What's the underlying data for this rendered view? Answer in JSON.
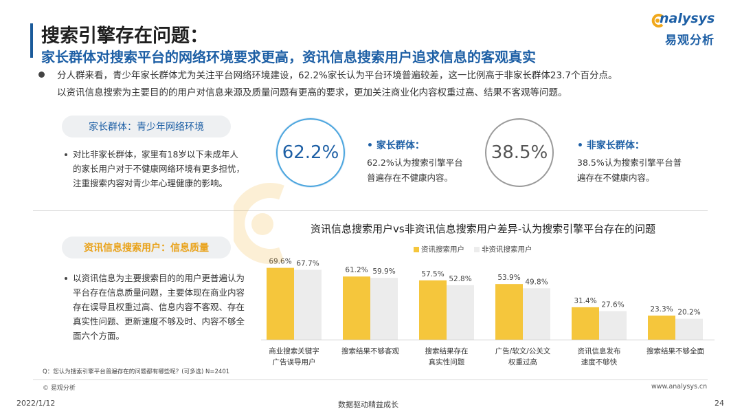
{
  "header": {
    "title": "搜索引擎存在问题：",
    "subtitle": "家长群体对搜索平台的网络环境要求更高，资讯信息搜索用户追求信息的客观真实"
  },
  "logo": {
    "en": "nalysys",
    "cn": "易观分析"
  },
  "summary": {
    "line1": "分人群来看，青少年家长群体尤为关注平台网络环境建设，62.2%家长认为平台环境普遍较差，这一比例高于非家长群体23.7个百分点。",
    "line2": "以资讯信息搜索为主要目的的用户对信息来源及质量问题有更高的要求，更加关注商业化内容权重过高、结果不客观等问题。"
  },
  "section_parents": {
    "pill": "家长群体：青少年网络环境",
    "text": "对比非家长群体，家里有18岁以下未成年人的家长用户对于不健康网络环境有更多担忧，注重搜索内容对青少年心理健康的影响。"
  },
  "section_info": {
    "pill": "资讯信息搜索用户：信息质量",
    "text": "以资讯信息为主要搜索目的的用户更普遍认为平台存在信息质量问题，主要体现在商业内容存在误导且权重过高、信息内容不客观、存在真实性问题、更新速度不够及时、内容不够全面六个方面。"
  },
  "stats": {
    "parents": {
      "value": "62.2%",
      "head": "• 家长群体：",
      "body": "62.2%认为搜索引擎平台普遍存在不健康内容。"
    },
    "non_parents": {
      "value": "38.5%",
      "head": "• 非家长群体：",
      "body": "38.5%认为搜索引擎平台普遍存在不健康内容。"
    }
  },
  "chart_title": "资讯信息搜索用户vs非资讯信息搜索用户差异-认为搜索引擎平台存在的问题",
  "chart_data": {
    "type": "bar",
    "categories": [
      [
        "商业搜索关键字",
        "广告误导用户"
      ],
      [
        "搜索结果不够客观"
      ],
      [
        "搜索结果存在",
        "真实性问题"
      ],
      [
        "广告/软文/公关文",
        "权重过高"
      ],
      [
        "资讯信息发布",
        "速度不够快"
      ],
      [
        "搜索结果不够全面"
      ]
    ],
    "series": [
      {
        "name": "资讯搜索用户",
        "values": [
          69.6,
          61.2,
          57.5,
          53.9,
          31.4,
          23.3
        ],
        "color": "#f5c63c"
      },
      {
        "name": "非资讯搜索用户",
        "values": [
          67.7,
          59.9,
          52.8,
          49.8,
          27.6,
          20.2
        ],
        "color": "#ececec"
      }
    ],
    "ylim": [
      0,
      80
    ],
    "legend": "top"
  },
  "footnote": "Q：您认为搜索引擎平台普遍存在的问题都有哪些呢？(可多选) N=2401",
  "footer": {
    "copyright": "© 易观分析",
    "website": "www.analysys.cn",
    "date": "2022/1/12",
    "tagline": "数据驱动精益成长",
    "page": "24"
  }
}
